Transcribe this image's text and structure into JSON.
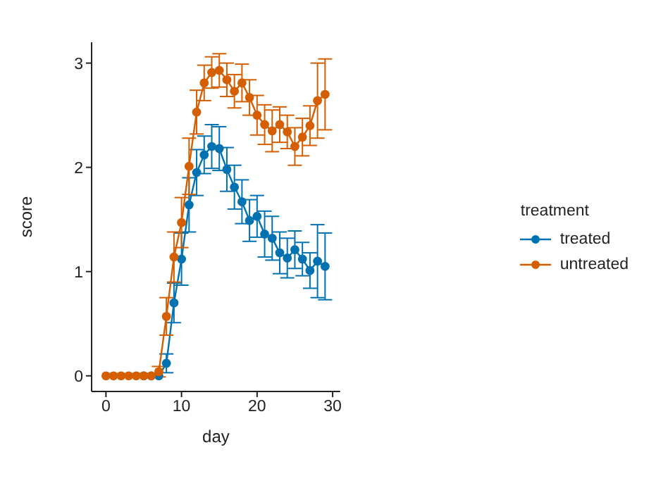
{
  "chart_data": {
    "type": "line",
    "xlabel": "day",
    "ylabel": "score",
    "legend_title": "treatment",
    "x": [
      0,
      1,
      2,
      3,
      4,
      5,
      6,
      7,
      8,
      9,
      10,
      11,
      12,
      13,
      14,
      15,
      16,
      17,
      18,
      19,
      20,
      21,
      22,
      23,
      24,
      25,
      26,
      27,
      28,
      29
    ],
    "series": [
      {
        "name": "treated",
        "color": "#0072b2",
        "values": [
          null,
          null,
          null,
          null,
          null,
          0,
          0,
          0,
          0.12,
          0.7,
          1.12,
          1.64,
          1.95,
          2.12,
          2.2,
          2.18,
          1.98,
          1.81,
          1.67,
          1.49,
          1.53,
          1.36,
          1.32,
          1.18,
          1.13,
          1.21,
          1.12,
          1.01,
          1.1,
          1.05
        ],
        "errors": [
          null,
          null,
          null,
          null,
          null,
          null,
          null,
          null,
          0.09,
          0.19,
          0.25,
          0.26,
          0.22,
          0.18,
          0.21,
          0.21,
          0.21,
          0.21,
          0.21,
          0.2,
          0.2,
          0.22,
          0.21,
          0.2,
          0.19,
          0.18,
          0.16,
          0.17,
          0.35,
          0.32
        ]
      },
      {
        "name": "untreated",
        "color": "#d55e00",
        "values": [
          0,
          0,
          0,
          0,
          0,
          0,
          0,
          0.04,
          0.57,
          1.14,
          1.47,
          2.01,
          2.53,
          2.81,
          2.91,
          2.93,
          2.84,
          2.73,
          2.81,
          2.67,
          2.5,
          2.41,
          2.35,
          2.41,
          2.34,
          2.2,
          2.29,
          2.4,
          2.64,
          2.7
        ],
        "errors": [
          null,
          null,
          null,
          null,
          null,
          null,
          null,
          0.05,
          0.18,
          0.24,
          0.24,
          0.27,
          0.21,
          0.17,
          0.15,
          0.16,
          0.16,
          0.16,
          0.18,
          0.17,
          0.19,
          0.19,
          0.2,
          0.17,
          0.16,
          0.18,
          0.18,
          0.19,
          0.36,
          0.34
        ]
      }
    ],
    "xlim": [
      -1.9,
      31
    ],
    "xticks": [
      0,
      10,
      20,
      30
    ],
    "ylim": [
      -0.15,
      3.2
    ],
    "yticks": [
      0,
      1,
      2,
      3
    ],
    "grid": false,
    "legend": "right",
    "marker": "circle",
    "line_style": "solid"
  }
}
